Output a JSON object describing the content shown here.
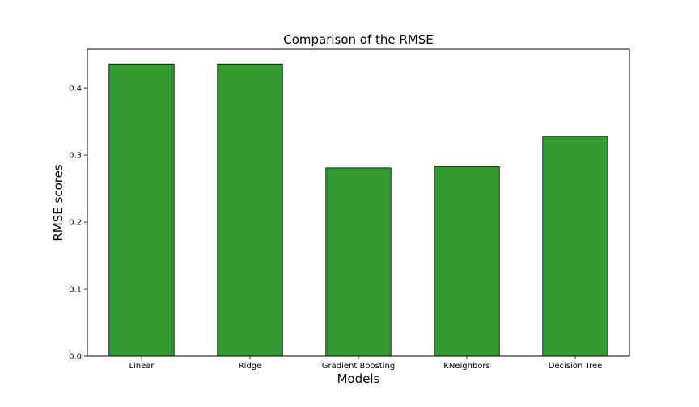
{
  "chart_data": {
    "type": "bar",
    "title": "Comparison of the RMSE",
    "xlabel": "Models",
    "ylabel": "RMSE scores",
    "categories": [
      "Linear",
      "Ridge",
      "Gradient Boosting",
      "KNeighbors",
      "Decision Tree"
    ],
    "values": [
      0.436,
      0.436,
      0.281,
      0.283,
      0.328
    ],
    "ylim": [
      0,
      0.458
    ],
    "yticks": [
      0.0,
      0.1,
      0.2,
      0.3,
      0.4
    ],
    "ytick_labels": [
      "0.0",
      "0.1",
      "0.2",
      "0.3",
      "0.4"
    ],
    "bar_color": "#339933",
    "edge_color": "#000000",
    "grid": false,
    "legend": "none"
  }
}
